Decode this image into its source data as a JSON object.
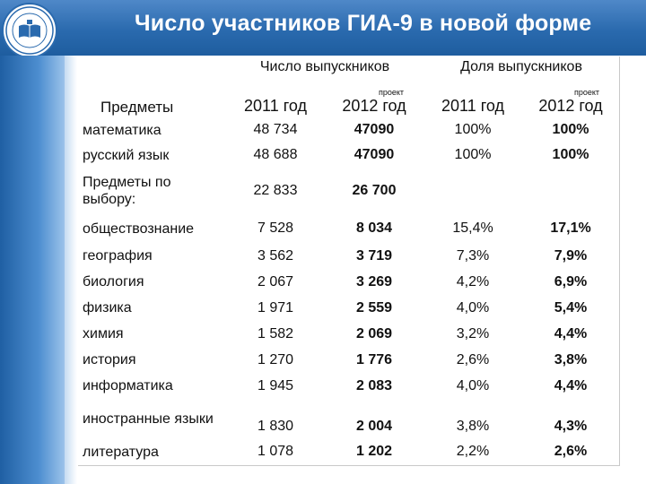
{
  "title": "Число участников ГИА-9 в новой форме",
  "headers": {
    "subjects": "Предметы",
    "graduates_count": "Число выпускников",
    "graduates_share": "Доля выпускников",
    "draft": "проект",
    "year_2011": "2011 год",
    "year_2012": "2012 год"
  },
  "rows": [
    {
      "subject": "математика",
      "c2011": "48 734",
      "c2012": "47090",
      "s2011": "100%",
      "s2012": "100%"
    },
    {
      "subject": "русский язык",
      "c2011": "48 688",
      "c2012": "47090",
      "s2011": "100%",
      "s2012": "100%"
    },
    {
      "subject": "Предметы по выбору:",
      "c2011": "22 833",
      "c2012": "26 700",
      "s2011": "",
      "s2012": ""
    },
    {
      "subject": "обществознание",
      "c2011": "7 528",
      "c2012": "8 034",
      "s2011": "15,4%",
      "s2012": "17,1%"
    },
    {
      "subject": "география",
      "c2011": "3 562",
      "c2012": "3 719",
      "s2011": "7,3%",
      "s2012": "7,9%"
    },
    {
      "subject": "биология",
      "c2011": "2 067",
      "c2012": "3 269",
      "s2011": "4,2%",
      "s2012": "6,9%"
    },
    {
      "subject": "физика",
      "c2011": "1 971",
      "c2012": "2 559",
      "s2011": "4,0%",
      "s2012": "5,4%"
    },
    {
      "subject": "химия",
      "c2011": "1 582",
      "c2012": "2 069",
      "s2011": "3,2%",
      "s2012": "4,4%"
    },
    {
      "subject": "история",
      "c2011": "1 270",
      "c2012": "1 776",
      "s2011": "2,6%",
      "s2012": "3,8%"
    },
    {
      "subject": "информатика",
      "c2011": "1 945",
      "c2012": "2 083",
      "s2011": "4,0%",
      "s2012": "4,4%"
    },
    {
      "subject": "иностранные языки",
      "c2011": "1 830",
      "c2012": "2 004",
      "s2011": "3,8%",
      "s2012": "4,3%"
    },
    {
      "subject": "литература",
      "c2011": "1 078",
      "c2012": "1 202",
      "s2011": "2,2%",
      "s2012": "2,6%"
    }
  ],
  "colors": {
    "header_blue": "#2a6aae",
    "accent_light": "#9cc3ea"
  },
  "icons": {
    "logo": "book-emblem-icon"
  }
}
